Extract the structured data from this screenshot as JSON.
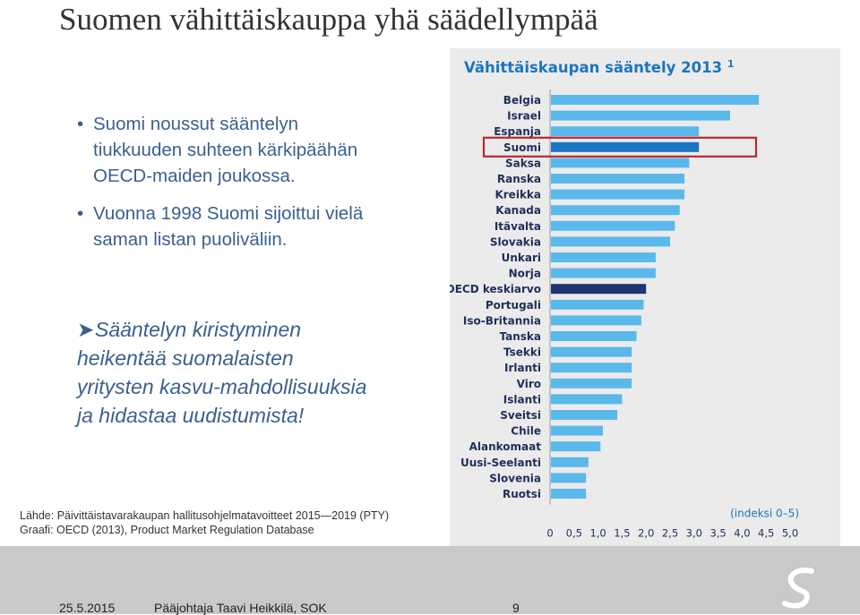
{
  "slide": {
    "title": "Suomen vähittäiskauppa yhä säädellympää",
    "bullets": [
      "Suomi noussut sääntelyn tiukkuuden suhteen kärkipäähän OECD-maiden joukossa.",
      "Vuonna 1998 Suomi sijoittui vielä saman listan puoliväliin."
    ],
    "sub_bullet": "Sääntelyn kiristyminen heikentää suomalaisten yritysten kasvu-mahdollisuuksia ja hidastaa uudistumista!",
    "source_line1": "Lähde: Päivittäistavarakaupan hallitusohjelmatavoitteet 2015—2019 (PTY)",
    "source_line2": "Graafi: OECD (2013), Product Market Regulation Database",
    "footer_date": "25.5.2015",
    "footer_author": "Pääjohtaja Taavi Heikkilä, SOK",
    "footer_page": "9"
  },
  "colors": {
    "bar": "#5bb8ea",
    "bar_highlight": "#1a76c2",
    "bar_average": "#1e3473",
    "highlight_box": "#c0272d",
    "chart_title": "#1a76c2",
    "bullet_text": "#3b5f8f"
  },
  "icons": {
    "logo": "s-logo-icon",
    "bullet": "bullet-dot-icon",
    "sub_bullet": "arrow-bullet-icon"
  },
  "chart_data": {
    "type": "bar",
    "orientation": "horizontal",
    "title": "Vähittäiskaupan sääntely 2013",
    "title_superscript": "1",
    "xlabel": "(indeksi 0–5)",
    "xlim": [
      0,
      5
    ],
    "xticks": [
      "0",
      "0,5",
      "1,0",
      "1,5",
      "2,0",
      "2,5",
      "3,0",
      "3,5",
      "4,0",
      "4,5",
      "5,0"
    ],
    "grid": false,
    "highlight": "Suomi",
    "average_category": "OECD keskiarvo",
    "categories": [
      "Belgia",
      "Israel",
      "Espanja",
      "Suomi",
      "Saksa",
      "Ranska",
      "Kreikka",
      "Kanada",
      "Itävalta",
      "Slovakia",
      "Unkari",
      "Norja",
      "OECD keskiarvo",
      "Portugali",
      "Iso-Britannia",
      "Tanska",
      "Tsekki",
      "Irlanti",
      "Viro",
      "Islanti",
      "Sveitsi",
      "Chile",
      "Alankomaat",
      "Uusi-Seelanti",
      "Slovenia",
      "Ruotsi"
    ],
    "values": [
      4.35,
      3.75,
      3.1,
      3.1,
      2.9,
      2.8,
      2.8,
      2.7,
      2.6,
      2.5,
      2.2,
      2.2,
      2.0,
      1.95,
      1.9,
      1.8,
      1.7,
      1.7,
      1.7,
      1.5,
      1.4,
      1.1,
      1.05,
      0.8,
      0.75,
      0.75
    ]
  }
}
